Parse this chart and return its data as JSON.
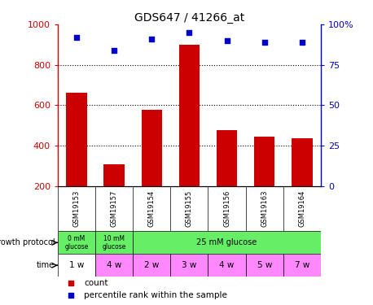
{
  "title": "GDS647 / 41266_at",
  "samples": [
    "GSM19153",
    "GSM19157",
    "GSM19154",
    "GSM19155",
    "GSM19156",
    "GSM19163",
    "GSM19164"
  ],
  "counts": [
    660,
    305,
    575,
    900,
    475,
    445,
    435
  ],
  "percentile_ranks": [
    92,
    84,
    91,
    95,
    90,
    89,
    89
  ],
  "ylim_left": [
    200,
    1000
  ],
  "ylim_right": [
    0,
    100
  ],
  "yticks_left": [
    200,
    400,
    600,
    800,
    1000
  ],
  "yticks_right": [
    0,
    25,
    50,
    75,
    100
  ],
  "ytick_labels_right": [
    "0",
    "25",
    "50",
    "75",
    "100%"
  ],
  "time_labels": [
    "1 w",
    "4 w",
    "2 w",
    "3 w",
    "4 w",
    "5 w",
    "7 w"
  ],
  "bar_color": "#CC0000",
  "dot_color": "#0000CC",
  "bg_color": "#FFFFFF",
  "left_axis_color": "#CC0000",
  "right_axis_color": "#0000CC",
  "sample_bg_color": "#C0C0C0",
  "time_bg_color": "#FF88FF",
  "growth_bg_color": "#66EE66"
}
